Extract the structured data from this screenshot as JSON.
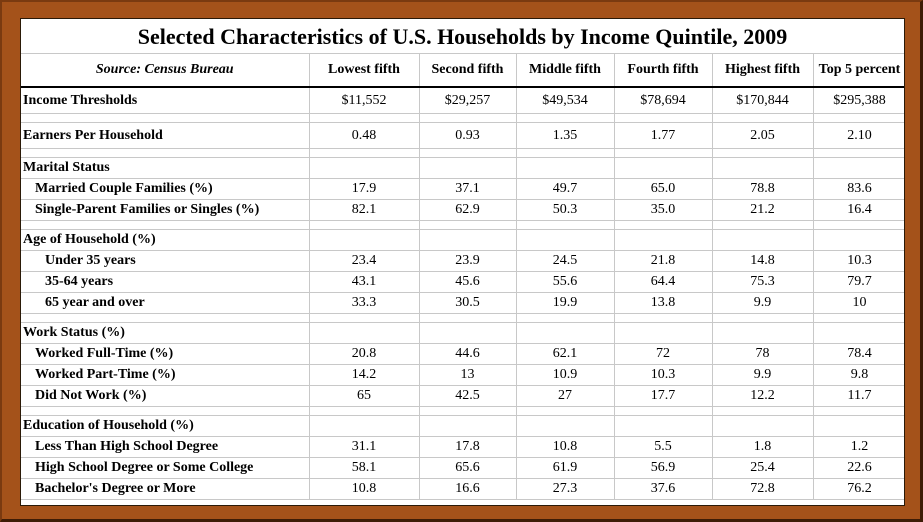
{
  "title": "Selected Characteristics of U.S. Households by Income Quintile, 2009",
  "source": "Source: Census Bureau",
  "columns": [
    "Lowest fifth",
    "Second fifth",
    "Middle fifth",
    "Fourth fifth",
    "Highest fifth",
    "Top 5 percent"
  ],
  "rows": {
    "income": {
      "label": "Income Thresholds",
      "values": [
        "$11,552",
        "$29,257",
        "$49,534",
        "$78,694",
        "$170,844",
        "$295,388"
      ]
    },
    "earners": {
      "label": "Earners Per Household",
      "values": [
        "0.48",
        "0.93",
        "1.35",
        "1.77",
        "2.05",
        "2.10"
      ]
    },
    "marital": {
      "label": "Marital Status",
      "married": {
        "label": "Married Couple Families (%)",
        "values": [
          "17.9",
          "37.1",
          "49.7",
          "65.0",
          "78.8",
          "83.6"
        ]
      },
      "single": {
        "label": "Single-Parent Families or Singles (%)",
        "values": [
          "82.1",
          "62.9",
          "50.3",
          "35.0",
          "21.2",
          "16.4"
        ]
      }
    },
    "age": {
      "label": "Age of Household (%)",
      "under35": {
        "label": "Under 35 years",
        "values": [
          "23.4",
          "23.9",
          "24.5",
          "21.8",
          "14.8",
          "10.3"
        ]
      },
      "mid": {
        "label": "35-64 years",
        "values": [
          "43.1",
          "45.6",
          "55.6",
          "64.4",
          "75.3",
          "79.7"
        ]
      },
      "over65": {
        "label": "65 year and over",
        "values": [
          "33.3",
          "30.5",
          "19.9",
          "13.8",
          "9.9",
          "10"
        ]
      }
    },
    "work": {
      "label": "Work Status (%)",
      "full": {
        "label": "Worked Full-Time (%)",
        "values": [
          "20.8",
          "44.6",
          "62.1",
          "72",
          "78",
          "78.4"
        ]
      },
      "part": {
        "label": "Worked Part-Time (%)",
        "values": [
          "14.2",
          "13",
          "10.9",
          "10.3",
          "9.9",
          "9.8"
        ]
      },
      "none": {
        "label": "Did Not Work (%)",
        "values": [
          "65",
          "42.5",
          "27",
          "17.7",
          "12.2",
          "11.7"
        ]
      }
    },
    "edu": {
      "label": "Education of Household (%)",
      "lths": {
        "label": "Less Than High School Degree",
        "values": [
          "31.1",
          "17.8",
          "10.8",
          "5.5",
          "1.8",
          "1.2"
        ]
      },
      "hs": {
        "label": "High School Degree or Some College",
        "values": [
          "58.1",
          "65.6",
          "61.9",
          "56.9",
          "25.4",
          "22.6"
        ]
      },
      "ba": {
        "label": "Bachelor's Degree or More",
        "values": [
          "10.8",
          "16.6",
          "27.3",
          "37.6",
          "72.8",
          "76.2"
        ]
      }
    }
  }
}
